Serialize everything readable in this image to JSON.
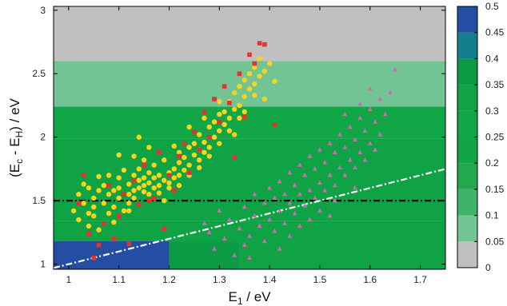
{
  "chart_data": {
    "type": "scatter",
    "xlabel": {
      "main": "E",
      "sub": "1",
      "rest": " / eV"
    },
    "ylabel": {
      "pre": "(E",
      "sub1": "c",
      "mid": " - E",
      "sub2": "H",
      "post": ") / eV"
    },
    "xlim": [
      0.97,
      1.75
    ],
    "ylim": [
      0.96,
      3.03
    ],
    "xticks": [
      "1",
      "1.1",
      "1.2",
      "1.3",
      "1.4",
      "1.5",
      "1.6",
      "1.7"
    ],
    "yticks": [
      "1",
      "1.5",
      "2",
      "2.5",
      "3"
    ],
    "grid": false,
    "background_bands": [
      {
        "y0": 2.6,
        "y1": 3.03,
        "value": 0.0
      },
      {
        "y0": 2.24,
        "y1": 2.6,
        "value": 0.08
      },
      {
        "y0": 1.99,
        "y1": 2.24,
        "value": 0.27
      },
      {
        "y0": 1.34,
        "y1": 1.99,
        "value": 0.32
      },
      {
        "y0": 1.18,
        "y1": 1.34,
        "value": 0.34
      }
    ],
    "background_cells": [
      {
        "x0": 0.97,
        "x1": 1.2,
        "y0": 0.96,
        "y1": 1.18,
        "value": 0.47
      },
      {
        "x0": 1.2,
        "x1": 1.34,
        "y0": 0.96,
        "y1": 1.18,
        "value": 0.4
      },
      {
        "x0": 1.34,
        "x1": 1.75,
        "y0": 0.96,
        "y1": 1.18,
        "value": 0.33
      }
    ],
    "reference_lines": [
      {
        "name": "horizontal-threshold",
        "style": "dash-dot",
        "color": "#000000",
        "x": [
          0.97,
          1.75
        ],
        "y": [
          1.5,
          1.5
        ]
      },
      {
        "name": "diagonal-boundary",
        "style": "dash-dot",
        "color": "#ffffff",
        "x": [
          0.97,
          1.75
        ],
        "y": [
          0.97,
          1.75
        ]
      }
    ],
    "series": [
      {
        "marker": "circle",
        "color": "#f8d51a",
        "points": [
          [
            1.01,
            1.42
          ],
          [
            1.02,
            1.55
          ],
          [
            1.02,
            1.35
          ],
          [
            1.03,
            1.48
          ],
          [
            1.03,
            1.63
          ],
          [
            1.04,
            1.4
          ],
          [
            1.04,
            1.3
          ],
          [
            1.05,
            1.52
          ],
          [
            1.05,
            1.45
          ],
          [
            1.05,
            1.38
          ],
          [
            1.06,
            1.58
          ],
          [
            1.06,
            1.27
          ],
          [
            1.07,
            1.48
          ],
          [
            1.07,
            1.62
          ],
          [
            1.08,
            1.4
          ],
          [
            1.08,
            1.55
          ],
          [
            1.08,
            1.7
          ],
          [
            1.09,
            1.45
          ],
          [
            1.09,
            1.33
          ],
          [
            1.1,
            1.6
          ],
          [
            1.1,
            1.52
          ],
          [
            1.1,
            1.68
          ],
          [
            1.11,
            1.42
          ],
          [
            1.11,
            1.74
          ],
          [
            1.12,
            1.55
          ],
          [
            1.12,
            1.63
          ],
          [
            1.12,
            1.48
          ],
          [
            1.13,
            1.7
          ],
          [
            1.13,
            1.58
          ],
          [
            1.13,
            1.52
          ],
          [
            1.14,
            1.66
          ],
          [
            1.14,
            1.6
          ],
          [
            1.14,
            1.75
          ],
          [
            1.15,
            1.57
          ],
          [
            1.15,
            1.68
          ],
          [
            1.15,
            1.62
          ],
          [
            1.16,
            1.55
          ],
          [
            1.16,
            1.72
          ],
          [
            1.16,
            1.64
          ],
          [
            1.17,
            1.6
          ],
          [
            1.17,
            1.68
          ],
          [
            1.17,
            1.78
          ],
          [
            1.18,
            1.62
          ],
          [
            1.18,
            1.7
          ],
          [
            1.18,
            1.56
          ],
          [
            1.19,
            1.66
          ],
          [
            1.19,
            1.82
          ],
          [
            1.2,
            1.64
          ],
          [
            1.2,
            1.72
          ],
          [
            1.2,
            1.6
          ],
          [
            1.21,
            1.75
          ],
          [
            1.21,
            1.68
          ],
          [
            1.22,
            1.8
          ],
          [
            1.22,
            1.7
          ],
          [
            1.22,
            1.88
          ],
          [
            1.23,
            1.74
          ],
          [
            1.23,
            1.84
          ],
          [
            1.24,
            1.78
          ],
          [
            1.24,
            1.92
          ],
          [
            1.24,
            1.7
          ],
          [
            1.25,
            1.86
          ],
          [
            1.25,
            1.95
          ],
          [
            1.26,
            1.82
          ],
          [
            1.26,
            1.9
          ],
          [
            1.26,
            2.02
          ],
          [
            1.27,
            1.88
          ],
          [
            1.27,
            1.96
          ],
          [
            1.28,
            1.92
          ],
          [
            1.28,
            2.08
          ],
          [
            1.28,
            1.85
          ],
          [
            1.29,
            2.0
          ],
          [
            1.29,
            2.12
          ],
          [
            1.3,
            2.05
          ],
          [
            1.3,
            1.95
          ],
          [
            1.3,
            2.18
          ],
          [
            1.31,
            2.1
          ],
          [
            1.31,
            2.2
          ],
          [
            1.32,
            2.15
          ],
          [
            1.32,
            2.28
          ],
          [
            1.32,
            2.05
          ],
          [
            1.33,
            2.22
          ],
          [
            1.33,
            2.35
          ],
          [
            1.34,
            2.25
          ],
          [
            1.34,
            2.4
          ],
          [
            1.34,
            2.15
          ],
          [
            1.35,
            2.32
          ],
          [
            1.35,
            2.45
          ],
          [
            1.36,
            2.38
          ],
          [
            1.36,
            2.5
          ],
          [
            1.37,
            2.42
          ],
          [
            1.37,
            2.55
          ],
          [
            1.38,
            2.48
          ],
          [
            1.38,
            2.62
          ],
          [
            1.39,
            2.52
          ],
          [
            1.4,
            2.58
          ],
          [
            1.41,
            2.44
          ],
          [
            1.14,
            2.0
          ],
          [
            1.16,
            1.92
          ],
          [
            1.1,
            1.86
          ],
          [
            1.24,
            2.08
          ],
          [
            1.27,
            2.15
          ],
          [
            1.06,
            1.69
          ],
          [
            1.19,
            1.5
          ],
          [
            1.12,
            1.42
          ],
          [
            1.15,
            1.82
          ],
          [
            1.21,
            1.93
          ],
          [
            1.3,
            2.28
          ],
          [
            1.35,
            2.2
          ],
          [
            1.22,
            1.62
          ],
          [
            1.09,
            1.58
          ],
          [
            1.04,
            1.6
          ],
          [
            1.13,
            1.85
          ],
          [
            1.26,
            1.76
          ],
          [
            1.33,
            2.02
          ],
          [
            1.37,
            2.33
          ],
          [
            1.39,
            2.3
          ]
        ]
      },
      {
        "marker": "square",
        "color": "#e8302c",
        "points": [
          [
            1.02,
            1.48
          ],
          [
            1.03,
            1.7
          ],
          [
            1.04,
            1.24
          ],
          [
            1.05,
            1.05
          ],
          [
            1.06,
            1.15
          ],
          [
            1.07,
            1.32
          ],
          [
            1.08,
            1.62
          ],
          [
            1.09,
            1.2
          ],
          [
            1.1,
            1.38
          ],
          [
            1.11,
            1.55
          ],
          [
            1.12,
            1.16
          ],
          [
            1.13,
            1.66
          ],
          [
            1.14,
            1.47
          ],
          [
            1.15,
            1.78
          ],
          [
            1.16,
            1.5
          ],
          [
            1.17,
            1.52
          ],
          [
            1.18,
            1.88
          ],
          [
            1.19,
            1.28
          ],
          [
            1.2,
            1.7
          ],
          [
            1.21,
            1.58
          ],
          [
            1.22,
            1.85
          ],
          [
            1.23,
            1.95
          ],
          [
            1.24,
            1.72
          ],
          [
            1.25,
            2.04
          ],
          [
            1.26,
            1.9
          ],
          [
            1.27,
            2.2
          ],
          [
            1.28,
            2.0
          ],
          [
            1.29,
            2.3
          ],
          [
            1.3,
            2.12
          ],
          [
            1.31,
            2.4
          ],
          [
            1.32,
            2.27
          ],
          [
            1.33,
            1.84
          ],
          [
            1.34,
            2.5
          ],
          [
            1.35,
            2.16
          ],
          [
            1.36,
            2.65
          ],
          [
            1.37,
            2.58
          ],
          [
            1.38,
            2.74
          ],
          [
            1.39,
            2.73
          ],
          [
            1.41,
            2.1
          ]
        ]
      },
      {
        "marker": "triangle",
        "color": "#c86cb4",
        "points": [
          [
            1.27,
            1.32
          ],
          [
            1.28,
            1.25
          ],
          [
            1.29,
            1.12
          ],
          [
            1.3,
            1.42
          ],
          [
            1.31,
            1.2
          ],
          [
            1.32,
            1.35
          ],
          [
            1.33,
            1.07
          ],
          [
            1.34,
            1.28
          ],
          [
            1.35,
            1.15
          ],
          [
            1.35,
            1.45
          ],
          [
            1.36,
            1.22
          ],
          [
            1.37,
            1.38
          ],
          [
            1.37,
            1.55
          ],
          [
            1.38,
            1.3
          ],
          [
            1.39,
            1.18
          ],
          [
            1.39,
            1.48
          ],
          [
            1.4,
            1.35
          ],
          [
            1.4,
            1.6
          ],
          [
            1.41,
            1.26
          ],
          [
            1.41,
            1.52
          ],
          [
            1.42,
            1.42
          ],
          [
            1.42,
            1.65
          ],
          [
            1.43,
            1.32
          ],
          [
            1.43,
            1.55
          ],
          [
            1.44,
            1.48
          ],
          [
            1.44,
            1.72
          ],
          [
            1.45,
            1.4
          ],
          [
            1.45,
            1.62
          ],
          [
            1.46,
            1.55
          ],
          [
            1.46,
            1.78
          ],
          [
            1.47,
            1.46
          ],
          [
            1.47,
            1.7
          ],
          [
            1.48,
            1.58
          ],
          [
            1.48,
            1.85
          ],
          [
            1.49,
            1.52
          ],
          [
            1.49,
            1.75
          ],
          [
            1.5,
            1.64
          ],
          [
            1.5,
            1.9
          ],
          [
            1.51,
            1.58
          ],
          [
            1.51,
            1.8
          ],
          [
            1.52,
            1.7
          ],
          [
            1.52,
            1.95
          ],
          [
            1.53,
            1.62
          ],
          [
            1.53,
            1.88
          ],
          [
            1.54,
            1.76
          ],
          [
            1.54,
            2.02
          ],
          [
            1.55,
            1.7
          ],
          [
            1.55,
            1.92
          ],
          [
            1.56,
            1.82
          ],
          [
            1.56,
            2.08
          ],
          [
            1.57,
            1.76
          ],
          [
            1.57,
            1.98
          ],
          [
            1.58,
            1.88
          ],
          [
            1.58,
            2.15
          ],
          [
            1.59,
            1.82
          ],
          [
            1.59,
            2.05
          ],
          [
            1.6,
            1.95
          ],
          [
            1.6,
            2.22
          ],
          [
            1.61,
            1.9
          ],
          [
            1.61,
            2.12
          ],
          [
            1.62,
            2.02
          ],
          [
            1.62,
            2.3
          ],
          [
            1.63,
            2.18
          ],
          [
            1.64,
            2.35
          ],
          [
            1.65,
            2.53
          ],
          [
            1.46,
            1.3
          ],
          [
            1.5,
            1.42
          ],
          [
            1.53,
            1.5
          ],
          [
            1.57,
            1.6
          ],
          [
            1.42,
            1.12
          ],
          [
            1.44,
            1.22
          ],
          [
            1.48,
            1.35
          ],
          [
            1.36,
            1.05
          ],
          [
            1.55,
            2.18
          ],
          [
            1.58,
            2.26
          ],
          [
            1.6,
            2.38
          ],
          [
            1.52,
            1.38
          ]
        ]
      }
    ],
    "colorbar": {
      "ticks": [
        "0.5",
        "0.45",
        "0.4",
        "0.35",
        "0.3",
        "0.25",
        "0.2",
        "0.15",
        "0.1",
        "0.05",
        "0"
      ],
      "range": [
        0,
        0.5
      ],
      "colormap": [
        {
          "min": 0.0,
          "max": 0.05,
          "color": "#c0c0c0"
        },
        {
          "min": 0.05,
          "max": 0.1,
          "color": "#72c495"
        },
        {
          "min": 0.1,
          "max": 0.15,
          "color": "#3fb36a"
        },
        {
          "min": 0.15,
          "max": 0.2,
          "color": "#24a84e"
        },
        {
          "min": 0.2,
          "max": 0.25,
          "color": "#12a545"
        },
        {
          "min": 0.25,
          "max": 0.3,
          "color": "#11a747"
        },
        {
          "min": 0.3,
          "max": 0.35,
          "color": "#0fa345"
        },
        {
          "min": 0.35,
          "max": 0.4,
          "color": "#0c9b45"
        },
        {
          "min": 0.4,
          "max": 0.45,
          "color": "#137f8e"
        },
        {
          "min": 0.45,
          "max": 0.5,
          "color": "#234ea4"
        }
      ]
    }
  }
}
